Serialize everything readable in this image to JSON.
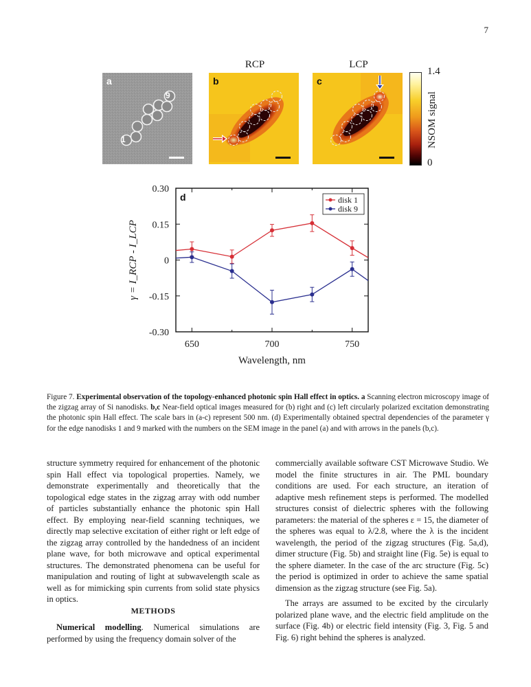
{
  "page_number": "7",
  "figure": {
    "top_labels": {
      "rcp": "RCP",
      "lcp": "LCP"
    },
    "panels": {
      "a": {
        "letter": "a",
        "marker_1": "1",
        "marker_9": "9"
      },
      "b": {
        "letter": "b"
      },
      "c": {
        "letter": "c"
      }
    },
    "colorbar": {
      "max": "1.4",
      "min": "0",
      "title": "NSOM signal"
    },
    "chart_data": {
      "type": "line",
      "panel_letter": "d",
      "x": [
        640,
        650,
        675,
        700,
        725,
        750,
        760
      ],
      "xticks": [
        "650",
        "700",
        "750"
      ],
      "xtick_values": [
        650,
        700,
        750
      ],
      "yticks": [
        "0.30",
        "0.15",
        "0",
        "-0.15",
        "-0.30"
      ],
      "ytick_values": [
        0.3,
        0.15,
        0,
        -0.15,
        -0.3
      ],
      "xlim": [
        640,
        760
      ],
      "ylim": [
        -0.3,
        0.3
      ],
      "xlabel": "Wavelength, nm",
      "ylabel": "γ = I_RCP - I_LCP",
      "legend_position": "top-right",
      "series": [
        {
          "name": "disk 1",
          "color": "#d62f36",
          "x": [
            640,
            650,
            675,
            700,
            725,
            750,
            760
          ],
          "y": [
            0.04,
            0.046,
            0.014,
            0.124,
            0.154,
            0.05,
            0.01
          ],
          "err": [
            null,
            0.03,
            0.028,
            0.025,
            0.035,
            0.03,
            null
          ],
          "markers": [
            false,
            true,
            true,
            true,
            true,
            true,
            false
          ]
        },
        {
          "name": "disk 9",
          "color": "#2a2f8f",
          "x": [
            640,
            650,
            675,
            700,
            725,
            750,
            760
          ],
          "y": [
            0.008,
            0.012,
            -0.046,
            -0.176,
            -0.144,
            -0.038,
            -0.086
          ],
          "err": [
            null,
            0.022,
            0.03,
            0.05,
            0.03,
            0.03,
            null
          ],
          "markers": [
            false,
            true,
            true,
            true,
            true,
            true,
            false
          ]
        }
      ]
    },
    "caption": {
      "label": "Figure 7.",
      "title": "Experimental observation of the topology-enhanced photonic spin Hall effect in optics.",
      "a_letter": "a",
      "a_text": "Scanning electron microscopy image of the zigzag array of Si nanodisks.",
      "bc_letter": "b,c",
      "bc_text": "Near-field optical images measured for (b) right and (c) left circularly polarized excitation demonstrating the photonic spin Hall effect. The scale bars in (a-c) represent 500 nm. (d) Experimentally obtained spectral dependencies of the parameter γ for the edge nanodisks 1 and 9 marked with the numbers on the SEM image in the panel (a) and with arrows in the panels (b,c)."
    }
  },
  "body": {
    "left_para": "structure symmetry required for enhancement of the photonic spin Hall effect via topological properties. Namely, we demonstrate experimentally and theoretically that the topological edge states in the zigzag array with odd number of particles substantially enhance the photonic spin Hall effect. By employing near-field scanning techniques, we directly map selective excitation of either right or left edge of the zigzag array controlled by the handedness of an incident plane wave, for both microwave and optical experimental structures. The demonstrated phenomena can be useful for manipulation and routing of light at subwavelength scale as well as for mimicking spin currents from solid state physics in optics.",
    "methods_heading": "METHODS",
    "numerical_subhead": "Numerical modelling",
    "numerical_text": ". Numerical simulations are performed by using the frequency domain solver of the",
    "right_para1": "commercially available software CST Microwave Studio. We model the finite structures in air. The PML boundary conditions are used. For each structure, an iteration of adaptive mesh refinement steps is performed. The modelled structures consist of dielectric spheres with the following parameters: the material of the spheres ε = 15, the diameter of the spheres was equal to λ/2.8, where the λ is the incident wavelength, the period of the zigzag structures (Fig. 5a,d), dimer structure (Fig. 5b) and straight line (Fig. 5e) is equal to the sphere diameter. In the case of the arc structure (Fig. 5c) the period is optimized in order to achieve the same spatial dimension as the zigzag structure (see Fig. 5a).",
    "right_para2": "The arrays are assumed to be excited by the circularly polarized plane wave, and the electric field amplitude on the surface (Fig. 4b) or electric field intensity (Fig. 3, Fig. 5 and Fig. 6) right behind the spheres is analyzed."
  }
}
